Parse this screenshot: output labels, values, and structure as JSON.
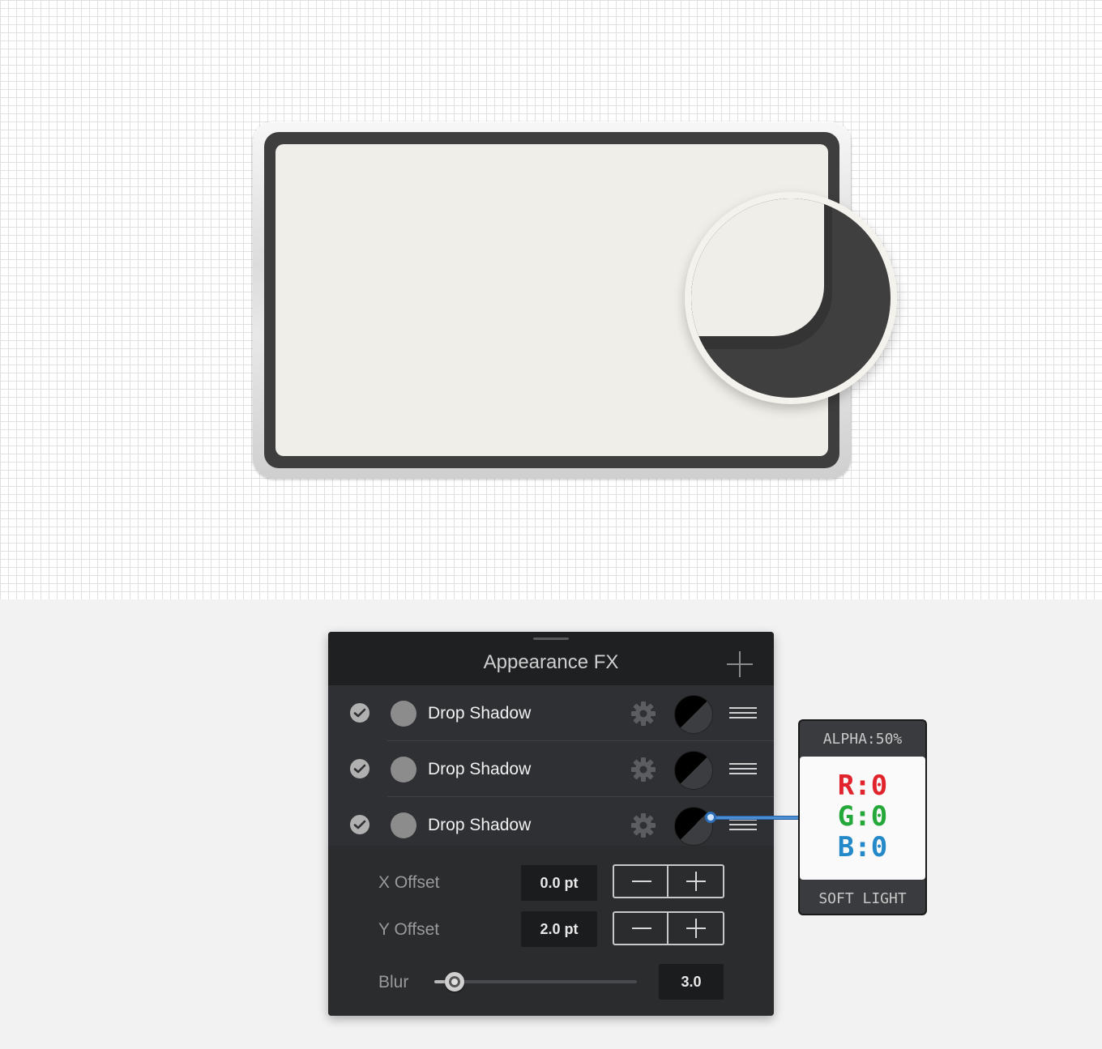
{
  "panel": {
    "title": "Appearance FX",
    "effects": [
      {
        "enabled": true,
        "label": "Drop Shadow"
      },
      {
        "enabled": true,
        "label": "Drop Shadow"
      },
      {
        "enabled": true,
        "label": "Drop Shadow"
      }
    ],
    "props": {
      "x_offset_label": "X Offset",
      "x_offset_value": "0.0 pt",
      "y_offset_label": "Y Offset",
      "y_offset_value": "2.0 pt",
      "blur_label": "Blur",
      "blur_value": "3.0",
      "blur_slider_fraction": 0.1
    }
  },
  "color_tooltip": {
    "alpha": "ALPHA:50%",
    "r": "R:0",
    "g": "G:0",
    "b": "B:0",
    "blend_mode": "SOFT LIGHT"
  },
  "colors": {
    "screen": "#f0eee8",
    "bezel": "#3e3e3e",
    "panel_bg": "#2b2c2e",
    "red": "#e1232c",
    "green": "#25a83a",
    "blue": "#2389c9"
  }
}
